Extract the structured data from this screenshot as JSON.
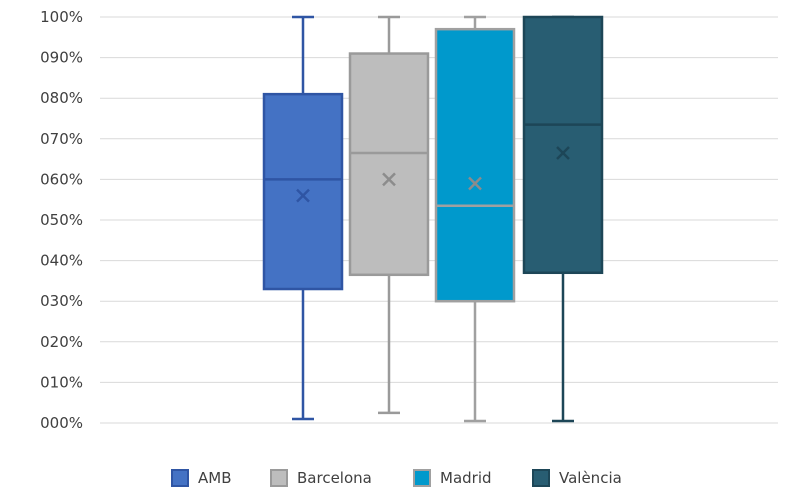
{
  "chart_data": {
    "type": "box",
    "title": "",
    "xlabel": "",
    "ylabel": "",
    "ylim": [
      0,
      100
    ],
    "y_ticks": [
      {
        "value": 0,
        "label": "000%"
      },
      {
        "value": 10,
        "label": "010%"
      },
      {
        "value": 20,
        "label": "020%"
      },
      {
        "value": 30,
        "label": "030%"
      },
      {
        "value": 40,
        "label": "040%"
      },
      {
        "value": 50,
        "label": "050%"
      },
      {
        "value": 60,
        "label": "060%"
      },
      {
        "value": 70,
        "label": "070%"
      },
      {
        "value": 80,
        "label": "080%"
      },
      {
        "value": 90,
        "label": "090%"
      },
      {
        "value": 100,
        "label": "100%"
      }
    ],
    "grid": true,
    "legend_position": "bottom",
    "series": [
      {
        "name": "AMB",
        "color": "#4472c4",
        "edge": "#2f55a4",
        "min": 1,
        "q1": 33,
        "median": 60,
        "q3": 81,
        "max": 100,
        "mean": 56
      },
      {
        "name": "Barcelona",
        "color": "#bdbdbd",
        "edge": "#9a9a9a",
        "min": 2.5,
        "q1": 36.5,
        "median": 66.5,
        "q3": 91,
        "max": 100,
        "mean": 60
      },
      {
        "name": "Madrid",
        "color": "#0099cc",
        "edge": "#a0a0a0",
        "min": 0.5,
        "q1": 30,
        "median": 53.5,
        "q3": 97,
        "max": 100,
        "mean": 59
      },
      {
        "name": "València",
        "color": "#285d72",
        "edge": "#1d4657",
        "min": 0.5,
        "q1": 37,
        "median": 73.5,
        "q3": 100,
        "max": 100,
        "mean": 66.5
      }
    ]
  }
}
